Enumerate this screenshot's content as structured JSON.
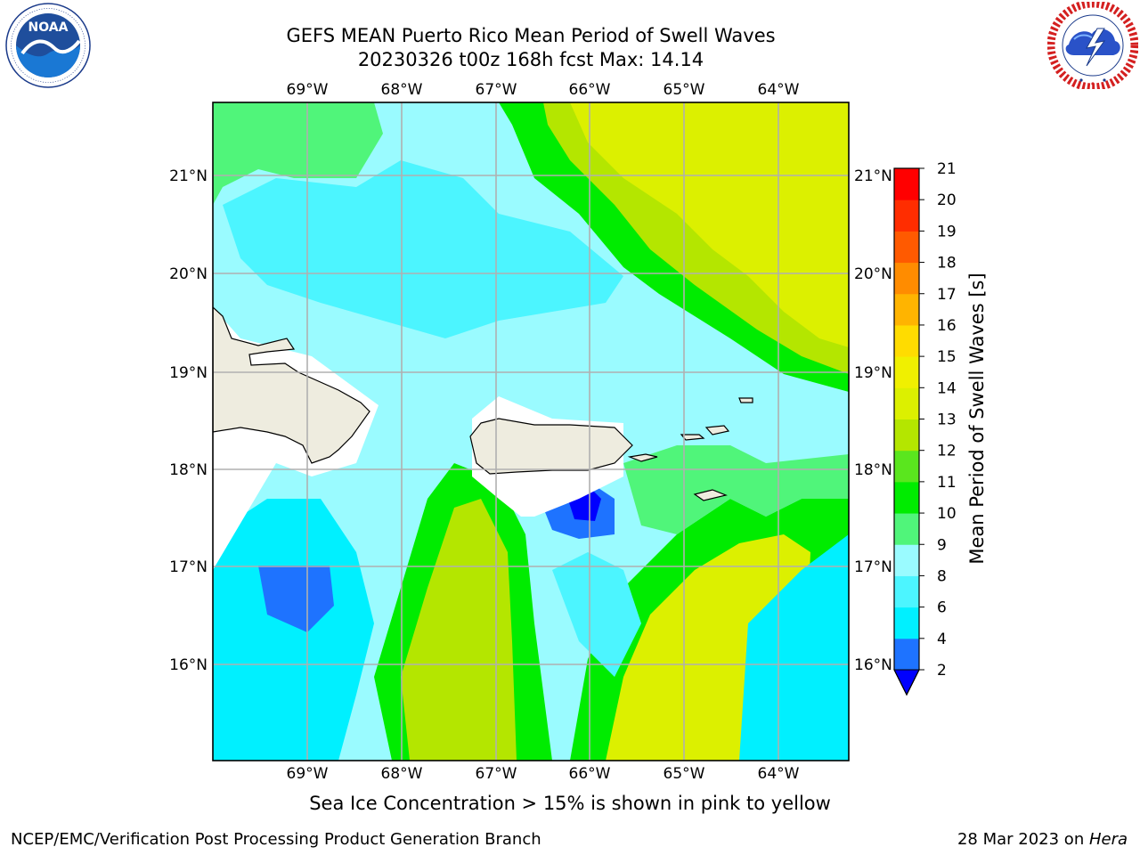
{
  "title": {
    "line1": "GEFS MEAN Puerto Rico Mean Period of Swell Waves",
    "line2": "20230326 t00z 168h fcst   Max: 14.14"
  },
  "logos": {
    "left": {
      "icon": "noaa-logo",
      "text": "NOAA",
      "ring_text": "NATIONAL OCEANIC AND ATMOSPHERIC ADMINISTRATION · U.S. DEPARTMENT OF COMMERCE"
    },
    "right": {
      "icon": "nws-logo",
      "ring_text": "NATIONAL WEATHER SERVICE"
    }
  },
  "map": {
    "lon_labels": [
      "69°W",
      "68°W",
      "67°W",
      "66°W",
      "65°W",
      "64°W"
    ],
    "lat_labels": [
      "21°N",
      "20°N",
      "19°N",
      "18°N",
      "17°N",
      "16°N"
    ],
    "lon_values": [
      -69,
      -68,
      -67,
      -66,
      -65,
      -64
    ],
    "lat_values": [
      21,
      20,
      19,
      18,
      17,
      16
    ],
    "extent": {
      "lon_min": -70,
      "lon_max": -63.25,
      "lat_min": 15,
      "lat_max": 21.75
    },
    "land_color": "#eeecdf",
    "grid_color": "#b0b0b0"
  },
  "colorbar": {
    "label": "Mean Period of Swell Waves [s]",
    "tick_labels": [
      "2",
      "4",
      "6",
      "8",
      "9",
      "10",
      "11",
      "12",
      "13",
      "14",
      "15",
      "16",
      "17",
      "18",
      "19",
      "20",
      "21"
    ],
    "levels": [
      2,
      4,
      6,
      8,
      9,
      10,
      11,
      12,
      13,
      14,
      15,
      16,
      17,
      18,
      19,
      20,
      21
    ],
    "colors": [
      "#0000ff",
      "#1e73ff",
      "#00f0ff",
      "#4cf5ff",
      "#9afbff",
      "#50f57a",
      "#00ec00",
      "#5ae61e",
      "#b4e600",
      "#dcf000",
      "#f0f000",
      "#ffdc00",
      "#ffb400",
      "#ff8c00",
      "#ff5a00",
      "#ff2d00",
      "#ff0000"
    ],
    "extend_min_color": "#0000ff"
  },
  "caption": "Sea Ice Concentration > 15% is shown in pink to yellow",
  "footer": {
    "left": "NCEP/EMC/Verification Post Processing Product Generation Branch",
    "right_date": "28 Mar 2023 on ",
    "right_host": "Hera"
  }
}
